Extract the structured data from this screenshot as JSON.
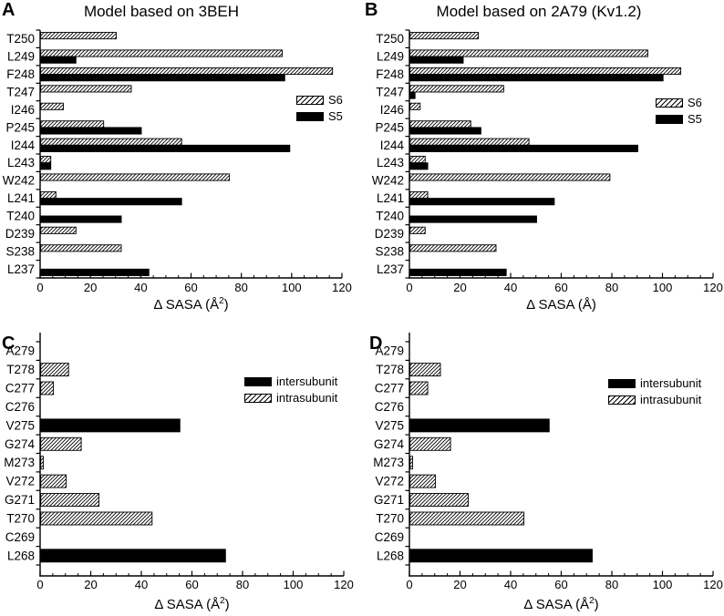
{
  "figure": {
    "panels": [
      {
        "label": "A",
        "title": "Model based on 3BEH",
        "xlabel": {
          "prefix": "Δ SASA (Å",
          "sup": "2",
          "suffix": ")"
        }
      },
      {
        "label": "B",
        "title": "Model based on 2A79 (Kv1.2)",
        "xlabel": {
          "prefix": "Δ SASA (Å",
          "sup": "",
          "suffix": ")"
        }
      },
      {
        "label": "C",
        "xlabel": {
          "prefix": "Δ SASA (Å",
          "sup": "2",
          "suffix": ")"
        }
      },
      {
        "label": "D",
        "xlabel": {
          "prefix": "Δ SASA (Å",
          "sup": "2",
          "suffix": ")"
        }
      }
    ]
  },
  "chart_data": [
    {
      "type": "bar",
      "orientation": "horizontal",
      "title": "Model based on 3BEH",
      "xlabel": "Δ SASA (Å²)",
      "xlim": [
        0,
        120
      ],
      "xticks": [
        0,
        20,
        40,
        60,
        80,
        100,
        120
      ],
      "x_minor_step": 5,
      "categories": [
        "T250",
        "L249",
        "F248",
        "T247",
        "I246",
        "P245",
        "I244",
        "L243",
        "W242",
        "L241",
        "T240",
        "D239",
        "S238",
        "L237"
      ],
      "series": [
        {
          "name": "S6",
          "pattern": "hatched",
          "values": [
            30,
            96,
            116,
            36,
            9,
            25,
            56,
            4,
            75,
            6,
            null,
            14,
            32,
            null
          ]
        },
        {
          "name": "S5",
          "pattern": "solid",
          "values": [
            null,
            14,
            97,
            null,
            null,
            40,
            99,
            4,
            null,
            56,
            32,
            null,
            null,
            43
          ]
        }
      ],
      "legend": {
        "position": "inside-right",
        "entries": [
          {
            "label": "S6",
            "pattern": "hatched"
          },
          {
            "label": "S5",
            "pattern": "solid"
          }
        ]
      }
    },
    {
      "type": "bar",
      "orientation": "horizontal",
      "title": "Model based on 2A79 (Kv1.2)",
      "xlabel": "Δ SASA (Å)",
      "xlim": [
        0,
        120
      ],
      "xticks": [
        0,
        20,
        40,
        60,
        80,
        100,
        120
      ],
      "x_minor_step": 5,
      "categories": [
        "T250",
        "L249",
        "F248",
        "T247",
        "I246",
        "P245",
        "I244",
        "L243",
        "W242",
        "L241",
        "T240",
        "D239",
        "S238",
        "L237"
      ],
      "series": [
        {
          "name": "S6",
          "pattern": "hatched",
          "values": [
            27,
            94,
            107,
            37,
            4,
            24,
            47,
            6,
            79,
            7,
            null,
            6,
            34,
            null
          ]
        },
        {
          "name": "S5",
          "pattern": "solid",
          "values": [
            null,
            21,
            100,
            2,
            null,
            28,
            90,
            7,
            null,
            57,
            50,
            null,
            null,
            38
          ]
        }
      ],
      "legend": {
        "position": "inside-right",
        "entries": [
          {
            "label": "S6",
            "pattern": "hatched"
          },
          {
            "label": "S5",
            "pattern": "solid"
          }
        ]
      }
    },
    {
      "type": "bar",
      "orientation": "horizontal",
      "title": "",
      "xlabel": "Δ SASA (Å²)",
      "xlim": [
        0,
        120
      ],
      "xticks": [
        0,
        20,
        40,
        60,
        80,
        100,
        120
      ],
      "x_minor_step": 5,
      "categories": [
        "A279",
        "T278",
        "C277",
        "C276",
        "V275",
        "G274",
        "M273",
        "V272",
        "G271",
        "T270",
        "C269",
        "L268"
      ],
      "series": [
        {
          "name": "intersubunit",
          "pattern": "solid",
          "values": [
            null,
            null,
            null,
            null,
            55,
            null,
            null,
            null,
            null,
            null,
            null,
            73
          ]
        },
        {
          "name": "intrasubunit",
          "pattern": "hatched",
          "values": [
            null,
            11,
            5,
            null,
            null,
            16,
            1,
            10,
            23,
            44,
            null,
            null
          ]
        }
      ],
      "legend": {
        "position": "inside-right",
        "entries": [
          {
            "label": "intersubunit",
            "pattern": "solid"
          },
          {
            "label": "intrasubunit",
            "pattern": "hatched"
          }
        ]
      }
    },
    {
      "type": "bar",
      "orientation": "horizontal",
      "title": "",
      "xlabel": "Δ SASA (Å²)",
      "xlim": [
        0,
        120
      ],
      "xticks": [
        0,
        20,
        40,
        60,
        80,
        100,
        120
      ],
      "x_minor_step": 5,
      "categories": [
        "A279",
        "T278",
        "C277",
        "C276",
        "V275",
        "G274",
        "M273",
        "V272",
        "G271",
        "T270",
        "C269",
        "L268"
      ],
      "series": [
        {
          "name": "intersubunit",
          "pattern": "solid",
          "values": [
            null,
            null,
            null,
            null,
            55,
            null,
            null,
            null,
            null,
            null,
            null,
            72
          ]
        },
        {
          "name": "intrasubunit",
          "pattern": "hatched",
          "values": [
            null,
            12,
            7,
            null,
            null,
            16,
            1,
            10,
            23,
            45,
            null,
            null
          ]
        }
      ],
      "legend": {
        "position": "inside-right",
        "entries": [
          {
            "label": "intersubunit",
            "pattern": "solid"
          },
          {
            "label": "intrasubunit",
            "pattern": "hatched"
          }
        ]
      }
    }
  ],
  "colors": {
    "bar_solid": "#000000",
    "bar_outline": "#000000",
    "background": "#ffffff",
    "text": "#000000"
  }
}
